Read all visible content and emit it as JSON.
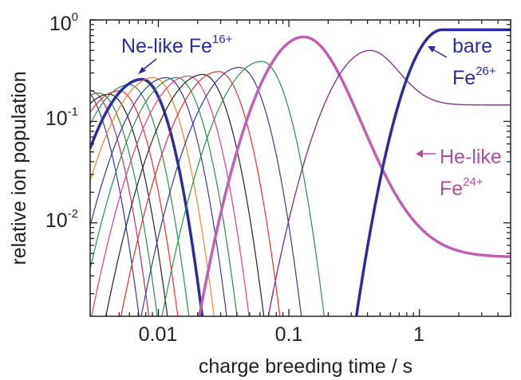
{
  "chart_data": {
    "type": "line",
    "title": "",
    "xlabel": "charge breeding time / s",
    "ylabel": "relative ion population",
    "xscale": "log",
    "yscale": "log",
    "xlim": [
      0.003,
      5
    ],
    "ylim": [
      0.0012,
      1
    ],
    "grid": false,
    "x_ticks": [
      {
        "value": 0.01,
        "label": "0.01"
      },
      {
        "value": 0.1,
        "label": "0.1"
      },
      {
        "value": 1,
        "label": "1"
      }
    ],
    "y_ticks": [
      {
        "value": 1,
        "base": "10",
        "exp": "0"
      },
      {
        "value": 0.1,
        "base": "10",
        "exp": "-1"
      },
      {
        "value": 0.01,
        "base": "10",
        "exp": "-2"
      }
    ],
    "series": [
      {
        "color": "#3a3a8c",
        "width": 1.2,
        "peak_t": 0.0025,
        "peak_y": 0.22,
        "rise": 1.6,
        "fall": 1.0
      },
      {
        "color": "#c0306a",
        "width": 1.2,
        "peak_t": 0.003,
        "peak_y": 0.2,
        "rise": 1.6,
        "fall": 1.0
      },
      {
        "color": "#2e8b4f",
        "width": 1.2,
        "peak_t": 0.0035,
        "peak_y": 0.19,
        "rise": 1.6,
        "fall": 1.0
      },
      {
        "color": "#222222",
        "width": 1.2,
        "peak_t": 0.0042,
        "peak_y": 0.185,
        "rise": 1.6,
        "fall": 1.0
      },
      {
        "color": "#e03030",
        "width": 1.2,
        "peak_t": 0.005,
        "peak_y": 0.2,
        "rise": 1.6,
        "fall": 1.0
      },
      {
        "color": "#2e8b4f",
        "width": 1.2,
        "peak_t": 0.006,
        "peak_y": 0.23,
        "rise": 1.6,
        "fall": 1.0
      },
      {
        "color": "#2c2c9a",
        "width": 3.5,
        "peak_t": 0.0075,
        "peak_y": 0.26,
        "rise": 1.6,
        "fall": 1.0
      },
      {
        "color": "#e8892b",
        "width": 1.2,
        "peak_t": 0.0092,
        "peak_y": 0.27,
        "rise": 1.6,
        "fall": 1.0
      },
      {
        "color": "#3a3a8c",
        "width": 1.2,
        "peak_t": 0.0115,
        "peak_y": 0.27,
        "rise": 1.6,
        "fall": 1.0
      },
      {
        "color": "#2e8b4f",
        "width": 1.2,
        "peak_t": 0.0138,
        "peak_y": 0.27,
        "rise": 1.6,
        "fall": 1.0
      },
      {
        "color": "#d0409a",
        "width": 1.2,
        "peak_t": 0.017,
        "peak_y": 0.28,
        "rise": 1.6,
        "fall": 1.0
      },
      {
        "color": "#222222",
        "width": 1.2,
        "peak_t": 0.022,
        "peak_y": 0.29,
        "rise": 1.6,
        "fall": 1.0
      },
      {
        "color": "#e03030",
        "width": 1.2,
        "peak_t": 0.029,
        "peak_y": 0.31,
        "rise": 1.6,
        "fall": 1.0
      },
      {
        "color": "#3a3a8c",
        "width": 1.2,
        "peak_t": 0.042,
        "peak_y": 0.34,
        "rise": 1.6,
        "fall": 1.0
      },
      {
        "color": "#2e8b4f",
        "width": 1.2,
        "peak_t": 0.062,
        "peak_y": 0.39,
        "rise": 1.6,
        "fall": 1.0
      },
      {
        "color": "#c060b0",
        "width": 3.5,
        "peak_t": 0.13,
        "peak_y": 0.68,
        "rise": 1.6,
        "fall": 1.2,
        "plateau": 0.0046
      },
      {
        "color": "#7a2a85",
        "width": 1.3,
        "peak_t": 0.42,
        "peak_y": 0.5,
        "rise": 1.6,
        "fall": 1.5,
        "plateau": 0.145
      },
      {
        "color": "#2c2c9a",
        "width": 3.5,
        "peak_t": 5.0,
        "peak_y": 0.8,
        "rise": 1.3,
        "fall": 1.0,
        "sat_t": 1.5
      }
    ],
    "annotations": [
      {
        "text": "Ne-like Fe",
        "sup": "16+",
        "color": "#2c2c9a"
      },
      {
        "text": "bare",
        "color": "#2c2c9a"
      },
      {
        "text": "Fe",
        "sup": "26+",
        "color": "#2c2c9a"
      },
      {
        "text": "He-like",
        "color": "#b04fa0"
      },
      {
        "text": "Fe",
        "sup": "24+",
        "color": "#b04fa0"
      }
    ]
  }
}
